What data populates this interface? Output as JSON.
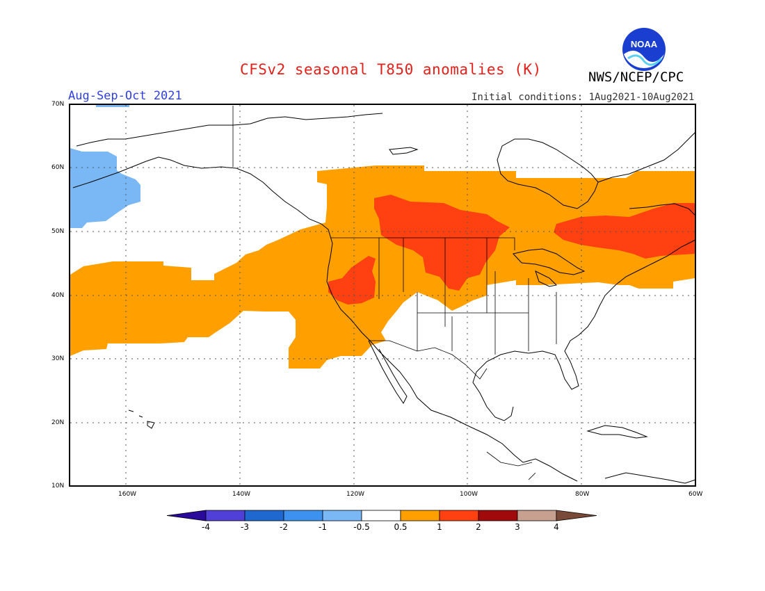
{
  "title": "CFSv2 seasonal T850 anomalies (K)",
  "org": "NWS/NCEP/CPC",
  "logo_text": "NOAA",
  "season": "Aug-Sep-Oct 2021",
  "initial_conditions": "Initial conditions: 1Aug2021-10Aug2021",
  "lat_labels": [
    "70N",
    "60N",
    "50N",
    "40N",
    "30N",
    "20N",
    "10N"
  ],
  "lon_labels": [
    "160W",
    "140W",
    "120W",
    "100W",
    "80W",
    "60W"
  ],
  "colorbar": {
    "labels": [
      "-4",
      "-3",
      "-2",
      "-1",
      "-0.5",
      "0.5",
      "1",
      "2",
      "3",
      "4"
    ],
    "colors": [
      "#2a0a9a",
      "#5040d8",
      "#1f68d0",
      "#3c92ee",
      "#7ab8f5",
      "#ffffff",
      "#ffa000",
      "#ff4010",
      "#a00a0a",
      "#c8a090",
      "#7a4a38"
    ]
  },
  "colors": {
    "title": "#e0201a",
    "season": "#2f3fe0",
    "warm_05_1": "#ffa000",
    "warm_1_2": "#ff4010",
    "cool_05_1": "#7ab8f5"
  }
}
